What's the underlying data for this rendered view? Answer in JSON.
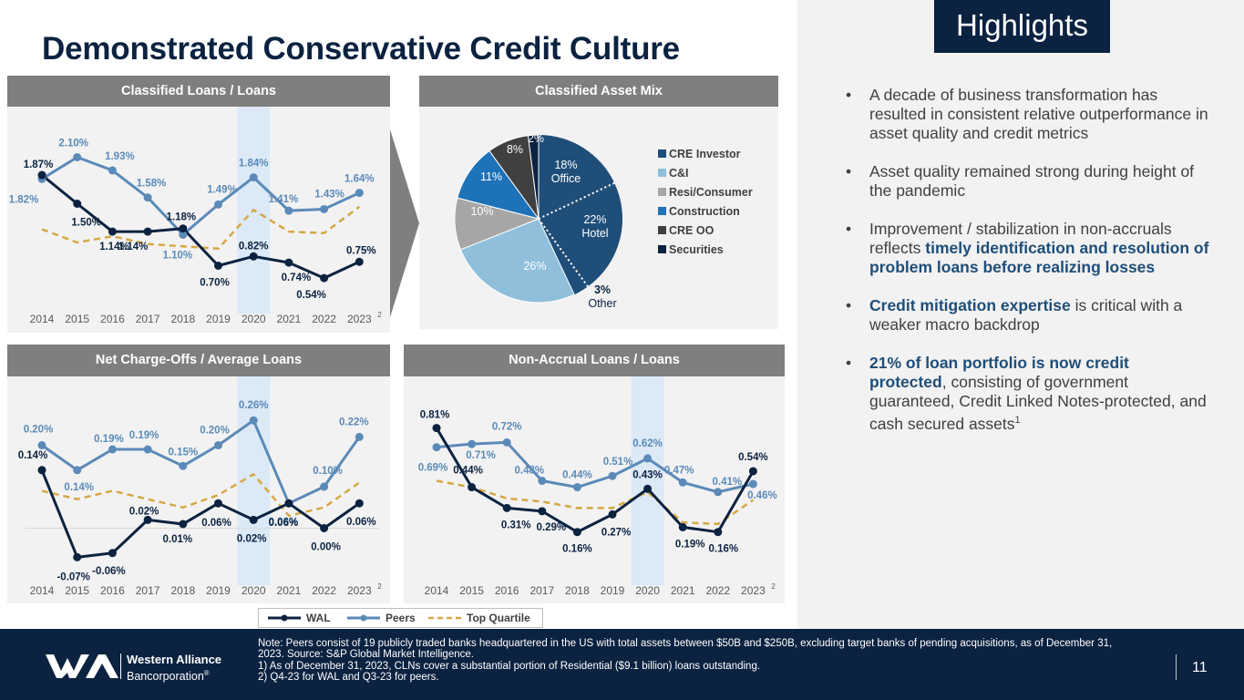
{
  "title": "Demonstrated Conservative Credit Culture",
  "highlights_label": "Highlights",
  "colors": {
    "wal": "#0b2240",
    "peers": "#5b8ab8",
    "topq": "#d4a843",
    "navy": "#0b2240",
    "gray_header": "#7f7f7f"
  },
  "panels": {
    "classified": "Classified Loans / Loans",
    "mix": "Classified Asset Mix",
    "nco": "Net Charge-Offs / Average Loans",
    "nonaccrual": "Non-Accrual Loans / Loans"
  },
  "chart_data": [
    {
      "type": "line",
      "id": "classified",
      "title": "Classified Loans / Loans",
      "categories": [
        "2014",
        "2015",
        "2016",
        "2017",
        "2018",
        "2019",
        "2020",
        "2021",
        "2022",
        "2023"
      ],
      "footnote_marker": "2",
      "series": [
        {
          "name": "WAL",
          "values": [
            1.87,
            1.5,
            1.14,
            1.14,
            1.18,
            0.7,
            0.82,
            0.74,
            0.54,
            0.75
          ],
          "labels": [
            "1.87%",
            "1.50%",
            "1.14%",
            "1.14%",
            "1.18%",
            "0.70%",
            "0.82%",
            "0.74%",
            "0.54%",
            "0.75%"
          ]
        },
        {
          "name": "Peers",
          "values": [
            1.82,
            2.1,
            1.93,
            1.58,
            1.1,
            1.49,
            1.84,
            1.41,
            1.43,
            1.64
          ],
          "labels": [
            "1.82%",
            "2.10%",
            "1.93%",
            "1.58%",
            "1.10%",
            "1.49%",
            "1.84%",
            "1.41%",
            "1.43%",
            "1.64%"
          ]
        },
        {
          "name": "Top Quartile",
          "values": [
            1.17,
            1.0,
            1.08,
            0.98,
            0.95,
            0.92,
            1.42,
            1.14,
            1.12,
            1.46
          ]
        }
      ],
      "highlight_category": "2020",
      "ylim": [
        0.4,
        2.4
      ]
    },
    {
      "type": "pie",
      "id": "mix",
      "title": "Classified Asset Mix",
      "slices": [
        {
          "name": "CRE Investor",
          "value": 18,
          "label": "18%",
          "sublabel": "Office",
          "color": "#1f4e79"
        },
        {
          "name": "CRE Investor",
          "value": 22,
          "label": "22%",
          "sublabel": "Hotel",
          "color": "#1f4e79"
        },
        {
          "name": "CRE Investor",
          "value": 3,
          "label": "3%",
          "sublabel": "Other",
          "color": "#1f4e79"
        },
        {
          "name": "C&I",
          "value": 26,
          "label": "26%",
          "sublabel": "",
          "color": "#8fbfdb"
        },
        {
          "name": "Resi/Consumer",
          "value": 10,
          "label": "10%",
          "sublabel": "",
          "color": "#a6a6a6"
        },
        {
          "name": "Construction",
          "value": 11,
          "label": "11%",
          "sublabel": "",
          "color": "#1e72b8"
        },
        {
          "name": "CRE OO",
          "value": 8,
          "label": "8%",
          "sublabel": "",
          "color": "#404040"
        },
        {
          "name": "Securities",
          "value": 2,
          "label": "2%",
          "sublabel": "",
          "color": "#0b2240"
        }
      ],
      "legend": [
        {
          "name": "CRE Investor",
          "color": "#1f4e79"
        },
        {
          "name": "C&I",
          "color": "#8fbfdb"
        },
        {
          "name": "Resi/Consumer",
          "color": "#a6a6a6"
        },
        {
          "name": "Construction",
          "color": "#1e72b8"
        },
        {
          "name": "CRE OO",
          "color": "#404040"
        },
        {
          "name": "Securities",
          "color": "#0b2240"
        }
      ]
    },
    {
      "type": "line",
      "id": "nco",
      "title": "Net Charge-Offs / Average Loans",
      "categories": [
        "2014",
        "2015",
        "2016",
        "2017",
        "2018",
        "2019",
        "2020",
        "2021",
        "2022",
        "2023"
      ],
      "footnote_marker": "2",
      "series": [
        {
          "name": "WAL",
          "values": [
            0.14,
            -0.07,
            -0.06,
            0.02,
            0.01,
            0.06,
            0.02,
            0.06,
            0.0,
            0.06
          ],
          "labels": [
            "0.14%",
            "-0.07%",
            "-0.06%",
            "0.02%",
            "0.01%",
            "0.06%",
            "0.02%",
            "0.06%",
            "0.00%",
            "0.06%"
          ]
        },
        {
          "name": "Peers",
          "values": [
            0.2,
            0.14,
            0.19,
            0.19,
            0.15,
            0.2,
            0.26,
            0.06,
            0.1,
            0.22
          ],
          "labels": [
            "0.20%",
            "0.14%",
            "0.19%",
            "0.19%",
            "0.15%",
            "0.20%",
            "0.26%",
            "0.06%",
            "0.10%",
            "0.22%"
          ]
        },
        {
          "name": "Top Quartile",
          "values": [
            0.09,
            0.07,
            0.09,
            0.07,
            0.05,
            0.08,
            0.13,
            0.03,
            0.05,
            0.11
          ]
        }
      ],
      "highlight_category": "2020",
      "ylim": [
        -0.1,
        0.3
      ]
    },
    {
      "type": "line",
      "id": "nonaccrual",
      "title": "Non-Accrual Loans / Loans",
      "categories": [
        "2014",
        "2015",
        "2016",
        "2017",
        "2018",
        "2019",
        "2020",
        "2021",
        "2022",
        "2023"
      ],
      "footnote_marker": "2",
      "series": [
        {
          "name": "WAL",
          "values": [
            0.81,
            0.44,
            0.31,
            0.29,
            0.16,
            0.27,
            0.43,
            0.19,
            0.16,
            0.54
          ],
          "labels": [
            "0.81%",
            "0.44%",
            "0.31%",
            "0.29%",
            "0.16%",
            "0.27%",
            "0.43%",
            "0.19%",
            "0.16%",
            "0.54%"
          ]
        },
        {
          "name": "Peers",
          "values": [
            0.69,
            0.71,
            0.72,
            0.48,
            0.44,
            0.51,
            0.62,
            0.47,
            0.41,
            0.46
          ],
          "labels": [
            "0.69%",
            "0.71%",
            "0.72%",
            "0.48%",
            "0.44%",
            "0.51%",
            "0.62%",
            "0.47%",
            "0.41%",
            "0.46%"
          ]
        },
        {
          "name": "Top Quartile",
          "values": [
            0.48,
            0.44,
            0.37,
            0.35,
            0.31,
            0.31,
            0.41,
            0.22,
            0.21,
            0.36
          ]
        }
      ],
      "highlight_category": "2020",
      "ylim": [
        0.05,
        0.95
      ]
    }
  ],
  "legend": {
    "wal": "WAL",
    "peers": "Peers",
    "topq": "Top Quartile"
  },
  "bullets": [
    {
      "parts": [
        {
          "t": "A decade of business transformation has resulted in consistent relative outperformance in asset quality and credit metrics",
          "b": false
        }
      ]
    },
    {
      "parts": [
        {
          "t": "Asset quality remained strong during height of the pandemic",
          "b": false
        }
      ]
    },
    {
      "parts": [
        {
          "t": "Improvement / stabilization in non-accruals reflects ",
          "b": false
        },
        {
          "t": "timely identification and resolution of problem loans before realizing losses",
          "b": true
        }
      ]
    },
    {
      "parts": [
        {
          "t": "Credit mitigation expertise",
          "b": true
        },
        {
          "t": " is critical with a weaker macro backdrop",
          "b": false
        }
      ]
    },
    {
      "parts": [
        {
          "t": "21% of loan portfolio is now credit protected",
          "b": true
        },
        {
          "t": ", consisting of government guaranteed, Credit Linked Notes-protected, and cash secured assets",
          "b": false
        },
        {
          "t": "1",
          "sup": true
        }
      ]
    }
  ],
  "footer": {
    "company_line1": "Western Alliance",
    "company_line2": "Bancorporation",
    "registered": "®",
    "note_main": "Note: Peers consist of 19 publicly traded banks headquartered in the US with total assets between $50B and $250B, excluding target banks of pending acquisitions, as of December 31, 2023. Source:  S&P Global Market Intelligence.",
    "note_1": "1)    As of December 31, 2023, CLNs cover a substantial portion of Residential ($9.1 billion) loans outstanding.",
    "note_2": "2)    Q4-23 for WAL and Q3-23 for peers.",
    "page_number": "11"
  }
}
